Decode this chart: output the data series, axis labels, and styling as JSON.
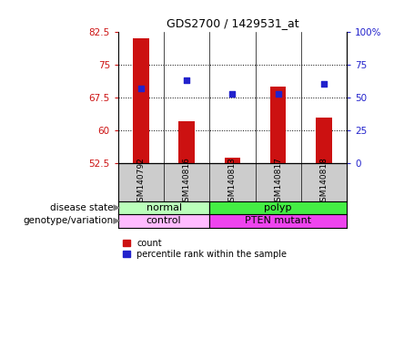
{
  "title": "GDS2700 / 1429531_at",
  "samples": [
    "GSM140792",
    "GSM140816",
    "GSM140813",
    "GSM140817",
    "GSM140818"
  ],
  "bar_values": [
    81.0,
    62.0,
    53.8,
    70.0,
    63.0
  ],
  "percentile_values": [
    57.0,
    63.0,
    53.0,
    53.0,
    60.0
  ],
  "ylim_left": [
    52.5,
    82.5
  ],
  "ylim_right": [
    0,
    100
  ],
  "yticks_left": [
    52.5,
    60.0,
    67.5,
    75.0,
    82.5
  ],
  "yticks_right": [
    0,
    25,
    50,
    75,
    100
  ],
  "ytick_labels_left": [
    "52.5",
    "60",
    "67.5",
    "75",
    "82.5"
  ],
  "ytick_labels_right": [
    "0",
    "25",
    "50",
    "75",
    "100%"
  ],
  "hlines": [
    60.0,
    67.5,
    75.0
  ],
  "bar_color": "#cc1111",
  "dot_color": "#2222cc",
  "bar_width": 0.35,
  "normal_color": "#bbffbb",
  "polyp_color": "#44ee44",
  "control_color": "#ffbbff",
  "pten_color": "#ee44ee",
  "label_disease": "disease state",
  "label_genotype": "genotype/variation",
  "legend_count": "count",
  "legend_percentile": "percentile rank within the sample",
  "bg_color": "#ffffff",
  "plot_bg": "#ffffff",
  "tick_label_color_left": "#cc1111",
  "tick_label_color_right": "#2222cc",
  "sample_bg_color": "#cccccc"
}
